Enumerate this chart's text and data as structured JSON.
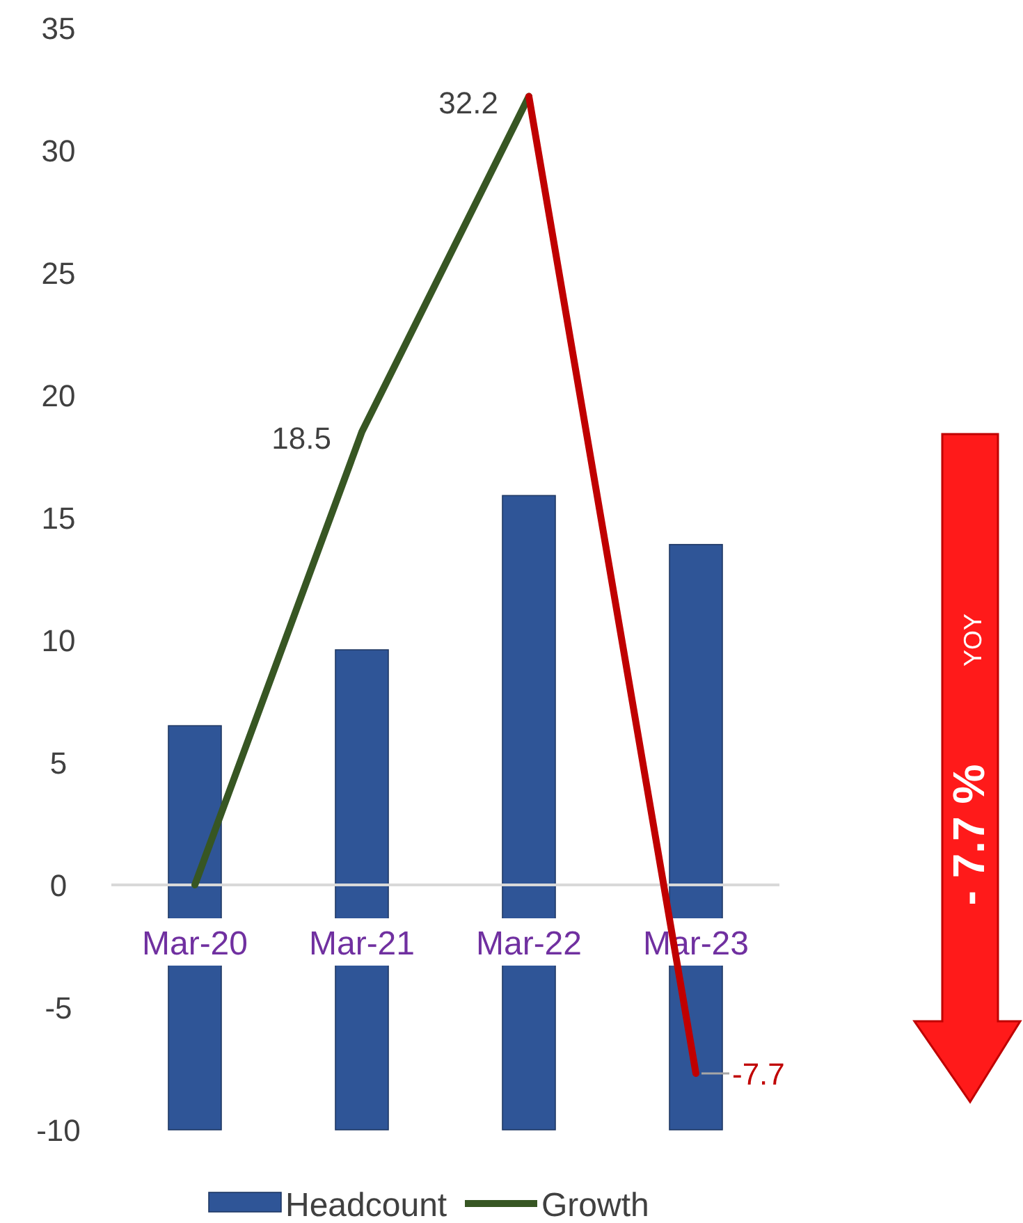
{
  "chart_data": {
    "type": "bar",
    "categories": [
      "Mar-20",
      "Mar-21",
      "Mar-22",
      "Mar-23"
    ],
    "ylim": [
      -10,
      35
    ],
    "yticks": [
      -10,
      -5,
      0,
      5,
      10,
      15,
      20,
      25,
      30,
      35
    ],
    "legend": "bottom",
    "series": [
      {
        "name": "Headcount",
        "color": "#2f5597",
        "values": [
          16.5,
          19.6,
          25.9,
          23.9
        ],
        "base": [
          -10,
          -10,
          -10,
          -10
        ]
      },
      {
        "name": "Growth",
        "type": "line",
        "color": "#375623",
        "values": [
          0,
          18.5,
          32.2,
          null
        ],
        "value_labels": [
          null,
          "18.5",
          "32.2",
          null
        ]
      },
      {
        "type": "line",
        "color": "#c00000",
        "values": [
          null,
          null,
          32.2,
          -7.7
        ],
        "value_labels": [
          null,
          null,
          null,
          "-7.7"
        ]
      }
    ],
    "annotations": [
      "- 7.7 %",
      "YOY"
    ]
  }
}
